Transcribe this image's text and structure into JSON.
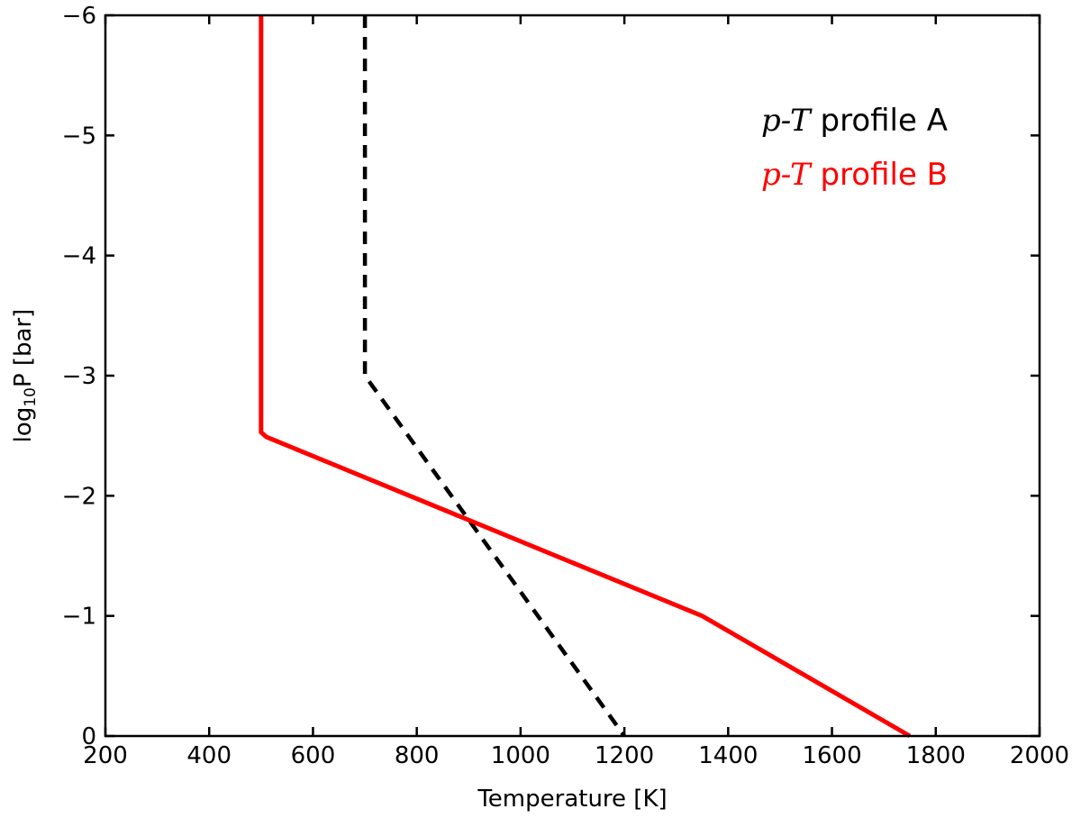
{
  "chart_data": {
    "type": "line",
    "xlabel": "Temperature [K]",
    "ylabel": {
      "prefix": "log",
      "subscript": "10",
      "suffix": "P [bar]"
    },
    "xlim": [
      200,
      2000
    ],
    "ylim": [
      0,
      -6
    ],
    "y_inverted": true,
    "xticks": [
      200,
      400,
      600,
      800,
      1000,
      1200,
      1400,
      1600,
      1800,
      2000
    ],
    "yticks": [
      0,
      -1,
      -2,
      -3,
      -4,
      -5,
      -6
    ],
    "xtick_labels": [
      "200",
      "400",
      "600",
      "800",
      "1000",
      "1200",
      "1400",
      "1600",
      "1800",
      "2000"
    ],
    "ytick_labels": [
      "0",
      "−1",
      "−2",
      "−3",
      "−4",
      "−5",
      "−6"
    ],
    "grid": false,
    "legend_placement": "top-right",
    "series": [
      {
        "name": "profile A",
        "legend_math": "p-T",
        "color": "#000000",
        "dash": "dashed",
        "points": [
          [
            700,
            -6
          ],
          [
            700,
            -3
          ],
          [
            1200,
            0
          ]
        ]
      },
      {
        "name": "profile B",
        "legend_math": "p-T",
        "color": "#ff0000",
        "dash": "solid",
        "points": [
          [
            500,
            -6
          ],
          [
            500,
            -2.53
          ],
          [
            510,
            -2.49
          ],
          [
            1350,
            -1
          ],
          [
            1750,
            0
          ]
        ]
      }
    ]
  }
}
